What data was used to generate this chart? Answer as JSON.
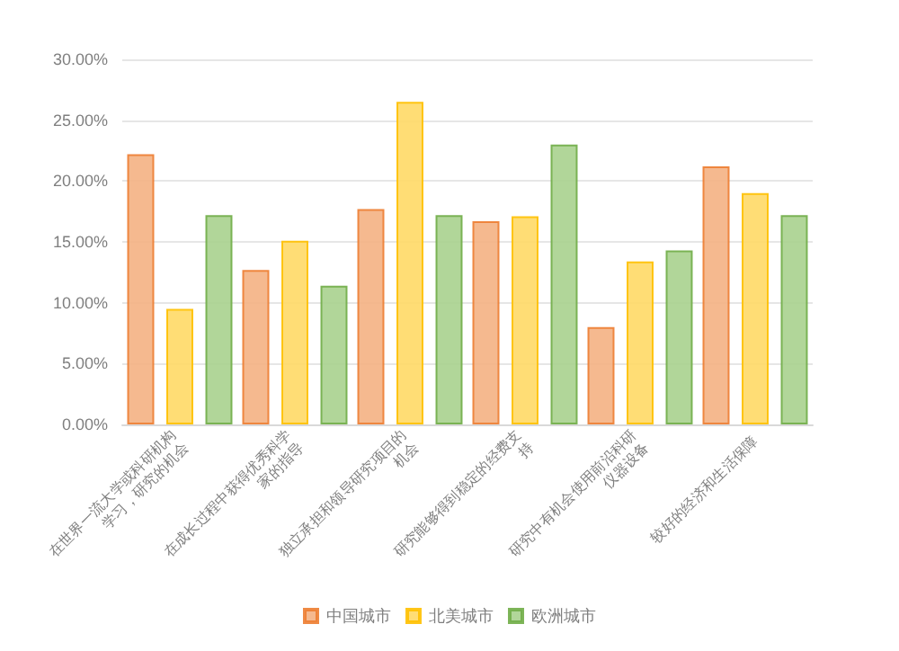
{
  "chart_data": {
    "type": "bar",
    "categories": [
      "在世界一流大学或科研机构学习，研究的机会",
      "在成长过程中获得优秀科学家的指导",
      "独立承担和领导研究项目的机会",
      "研究能够得到稳定的经费支持",
      "研究中有机会使用前沿科研仪器设备",
      "较好的经济和生活保障"
    ],
    "series": [
      {
        "name": "中国城市",
        "color": "#f4b183",
        "values": [
          22.2,
          12.7,
          17.7,
          16.7,
          8.0,
          21.2
        ]
      },
      {
        "name": "北美城市",
        "color": "#ffd966",
        "values": [
          9.5,
          15.1,
          26.5,
          17.1,
          13.4,
          19.0
        ]
      },
      {
        "name": "欧洲城市",
        "color": "#a9d18e",
        "values": [
          17.2,
          11.4,
          17.2,
          23.0,
          14.3,
          17.2
        ]
      }
    ],
    "ylim": [
      0,
      30
    ],
    "yticks": [
      {
        "value": 0,
        "label": "0.00%"
      },
      {
        "value": 5,
        "label": "5.00%"
      },
      {
        "value": 10,
        "label": "10.00%"
      },
      {
        "value": 15,
        "label": "15.00%"
      },
      {
        "value": 20,
        "label": "20.00%"
      },
      {
        "value": 25,
        "label": "25.00%"
      },
      {
        "value": 30,
        "label": "30.00%"
      }
    ],
    "grid": "y",
    "legend": "bottom"
  }
}
